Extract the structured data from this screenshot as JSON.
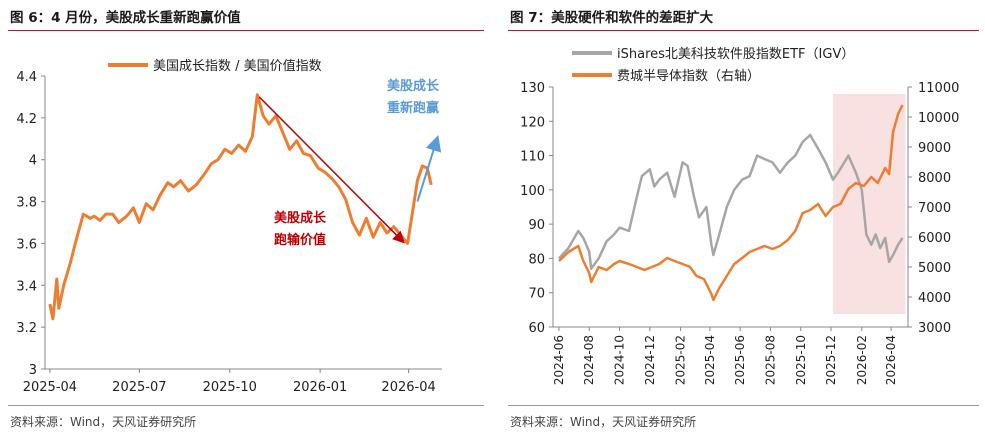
{
  "left": {
    "title": "图 6：4 月份，美股成长重新跑赢价值",
    "source": "资料来源：Wind，天风证券研究所"
  },
  "right": {
    "title": "图 7：美股硬件和软件的差距扩大",
    "source": "资料来源：Wind，天风证券研究所"
  },
  "colors": {
    "orange": "#ED7D31",
    "gray": "#A6A6A6",
    "darkred": "#C00000",
    "blue": "#5B9BD5",
    "shade": "#F8D7D7",
    "rule": "#C8102E"
  },
  "chart_data": [
    {
      "type": "line",
      "title": "美股成长重新跑赢价值",
      "series": [
        {
          "name": "美国成长指数 / 美国价值指数",
          "x": [
            "2025-04-01",
            "2025-04-04",
            "2025-04-08",
            "2025-04-10",
            "2025-04-15",
            "2025-04-22",
            "2025-04-28",
            "2025-05-05",
            "2025-05-12",
            "2025-05-16",
            "2025-05-22",
            "2025-05-28",
            "2025-06-04",
            "2025-06-10",
            "2025-06-18",
            "2025-06-25",
            "2025-07-01",
            "2025-07-08",
            "2025-07-15",
            "2025-07-22",
            "2025-07-30",
            "2025-08-05",
            "2025-08-12",
            "2025-08-20",
            "2025-08-28",
            "2025-09-05",
            "2025-09-12",
            "2025-09-19",
            "2025-09-26",
            "2025-10-03",
            "2025-10-10",
            "2025-10-17",
            "2025-10-24",
            "2025-10-29",
            "2025-11-04",
            "2025-11-10",
            "2025-11-17",
            "2025-11-24",
            "2025-12-01",
            "2025-12-08",
            "2025-12-15",
            "2025-12-22",
            "2025-12-30",
            "2026-01-06",
            "2026-01-13",
            "2026-01-20",
            "2026-01-27",
            "2026-02-03",
            "2026-02-10",
            "2026-02-17",
            "2026-02-24",
            "2026-03-03",
            "2026-03-10",
            "2026-03-17",
            "2026-03-24",
            "2026-03-31",
            "2026-04-06",
            "2026-04-10",
            "2026-04-15",
            "2026-04-20",
            "2026-04-24"
          ],
          "values": [
            3.31,
            3.24,
            3.43,
            3.29,
            3.4,
            3.51,
            3.62,
            3.74,
            3.72,
            3.73,
            3.71,
            3.74,
            3.74,
            3.7,
            3.73,
            3.77,
            3.7,
            3.79,
            3.76,
            3.83,
            3.89,
            3.87,
            3.9,
            3.85,
            3.88,
            3.93,
            3.98,
            4.0,
            4.05,
            4.03,
            4.07,
            4.04,
            4.11,
            4.31,
            4.21,
            4.17,
            4.21,
            4.13,
            4.05,
            4.09,
            4.03,
            4.02,
            3.96,
            3.94,
            3.91,
            3.87,
            3.81,
            3.7,
            3.64,
            3.72,
            3.63,
            3.7,
            3.65,
            3.68,
            3.64,
            3.6,
            3.78,
            3.9,
            3.97,
            3.96,
            3.88
          ]
        }
      ],
      "xlabel": "",
      "ylabel": "",
      "x_ticks": [
        "2025-04",
        "2025-07",
        "2025-10",
        "2026-01",
        "2026-04"
      ],
      "y_ticks": [
        "3",
        "3.2",
        "3.4",
        "3.6",
        "3.8",
        "4",
        "4.2",
        "4.4"
      ],
      "ylim": [
        3,
        4.4
      ],
      "legend": "top-center",
      "annotations": [
        {
          "text_lines": [
            "美股成长",
            "跑输价值"
          ],
          "color": "darkred"
        },
        {
          "text_lines": [
            "美股成长",
            "重新跑赢"
          ],
          "color": "blue"
        }
      ]
    },
    {
      "type": "line",
      "title": "美股硬件和软件的差距扩大",
      "series": [
        {
          "name": "iShares北美科技软件股指数ETF（IGV）",
          "axis": "left",
          "x": [
            "2024-06-01",
            "2024-06-20",
            "2024-07-10",
            "2024-07-20",
            "2024-08-01",
            "2024-08-05",
            "2024-08-20",
            "2024-09-05",
            "2024-09-20",
            "2024-10-01",
            "2024-10-20",
            "2024-11-05",
            "2024-11-15",
            "2024-12-01",
            "2024-12-10",
            "2024-12-20",
            "2025-01-05",
            "2025-01-20",
            "2025-02-05",
            "2025-02-15",
            "2025-02-28",
            "2025-03-10",
            "2025-03-25",
            "2025-04-04",
            "2025-04-08",
            "2025-04-20",
            "2025-05-05",
            "2025-05-20",
            "2025-06-05",
            "2025-06-20",
            "2025-07-05",
            "2025-07-20",
            "2025-08-05",
            "2025-08-20",
            "2025-09-05",
            "2025-09-20",
            "2025-10-05",
            "2025-10-20",
            "2025-11-05",
            "2025-11-20",
            "2025-12-05",
            "2025-12-15",
            "2026-01-05",
            "2026-01-20",
            "2026-02-01",
            "2026-02-10",
            "2026-02-20",
            "2026-03-01",
            "2026-03-10",
            "2026-03-20",
            "2026-03-28",
            "2026-04-05",
            "2026-04-15",
            "2026-04-24"
          ],
          "values": [
            80,
            83,
            88,
            86,
            82,
            77,
            80,
            85,
            87,
            89,
            88,
            98,
            104,
            106,
            101,
            103,
            105,
            98,
            108,
            107,
            98,
            92,
            95,
            84,
            81,
            87,
            95,
            100,
            103,
            104,
            110,
            109,
            108,
            105,
            108,
            110,
            114,
            116,
            112,
            108,
            103,
            105,
            110,
            105,
            100,
            87,
            84,
            87,
            83,
            86,
            79,
            81,
            84,
            86
          ]
        },
        {
          "name": "费城半导体指数（右轴）",
          "axis": "right",
          "x": [
            "2024-06-01",
            "2024-06-20",
            "2024-07-10",
            "2024-07-20",
            "2024-08-01",
            "2024-08-05",
            "2024-08-20",
            "2024-09-05",
            "2024-09-20",
            "2024-10-01",
            "2024-10-20",
            "2024-11-05",
            "2024-11-20",
            "2024-12-05",
            "2024-12-20",
            "2025-01-05",
            "2025-01-20",
            "2025-02-05",
            "2025-02-20",
            "2025-03-05",
            "2025-03-20",
            "2025-04-04",
            "2025-04-08",
            "2025-04-20",
            "2025-05-05",
            "2025-05-20",
            "2025-06-05",
            "2025-06-20",
            "2025-07-05",
            "2025-07-20",
            "2025-08-05",
            "2025-08-20",
            "2025-09-05",
            "2025-09-20",
            "2025-10-05",
            "2025-10-20",
            "2025-11-05",
            "2025-11-20",
            "2025-12-05",
            "2025-12-20",
            "2026-01-05",
            "2026-01-20",
            "2026-02-05",
            "2026-02-20",
            "2026-03-05",
            "2026-03-20",
            "2026-03-28",
            "2026-04-05",
            "2026-04-15",
            "2026-04-24"
          ],
          "values": [
            5200,
            5500,
            5700,
            5200,
            4800,
            4500,
            5000,
            4900,
            5100,
            5200,
            5100,
            5000,
            4900,
            5000,
            5100,
            5300,
            5200,
            5100,
            5000,
            4700,
            4600,
            4100,
            3900,
            4300,
            4700,
            5100,
            5300,
            5500,
            5600,
            5700,
            5600,
            5700,
            5900,
            6200,
            6800,
            6900,
            7100,
            6700,
            7000,
            7100,
            7600,
            7800,
            7700,
            8000,
            7800,
            8300,
            8100,
            9500,
            10100,
            10400
          ]
        }
      ],
      "x_ticks": [
        "2024-06",
        "2024-08",
        "2024-10",
        "2024-12",
        "2025-02",
        "2025-04",
        "2025-06",
        "2025-08",
        "2025-10",
        "2025-12",
        "2026-02",
        "2026-04"
      ],
      "y_ticks_left": [
        "60",
        "70",
        "80",
        "90",
        "100",
        "110",
        "120",
        "130"
      ],
      "y_ticks_right": [
        "3000",
        "4000",
        "5000",
        "6000",
        "7000",
        "8000",
        "9000",
        "10000",
        "11000"
      ],
      "ylim_left": [
        60,
        130
      ],
      "ylim_right": [
        3000,
        11000
      ],
      "shaded_period": [
        "2025-12-05",
        "2026-04-30"
      ],
      "legend": "top-center"
    }
  ]
}
